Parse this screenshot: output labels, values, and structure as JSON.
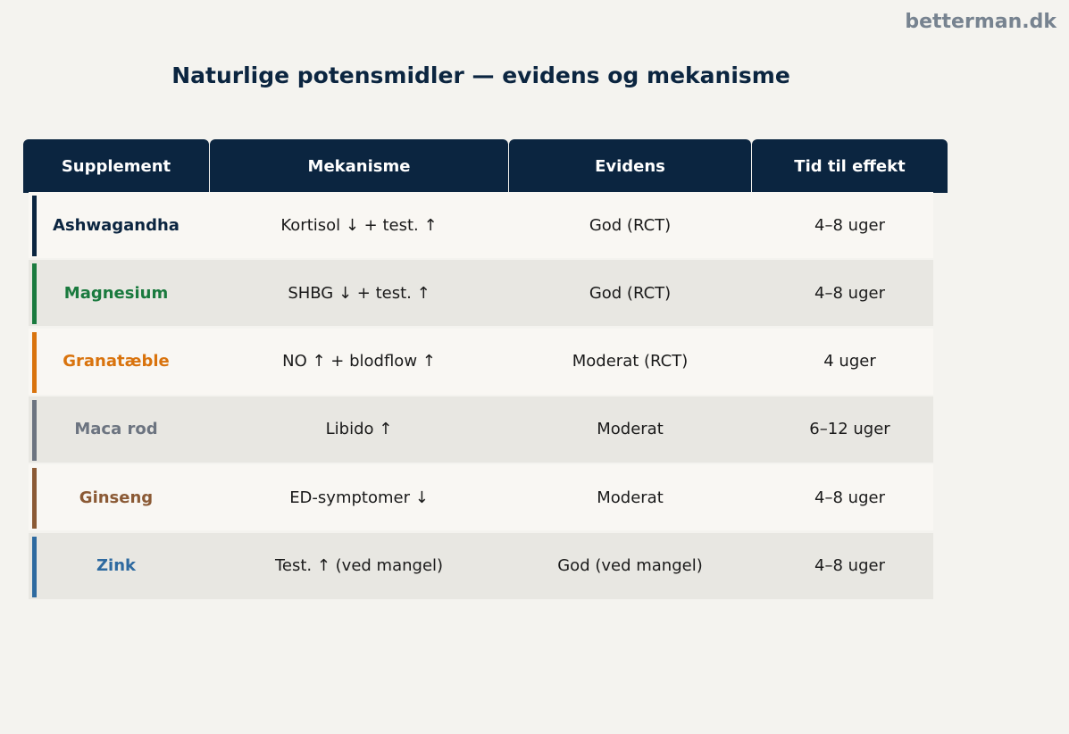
{
  "brand": "betterman.dk",
  "title": "Naturlige potensmidler — evidens og mekanisme",
  "table": {
    "headers": [
      "Supplement",
      "Mekanisme",
      "Evidens",
      "Tid til effekt"
    ],
    "rows": [
      [
        "Ashwagandha",
        "Kortisol ↓ + test. ↑",
        "God (RCT)",
        "4–8 uger"
      ],
      [
        "Magnesium",
        "SHBG ↓ + test. ↑",
        "God (RCT)",
        "4–8 uger"
      ],
      [
        "Granatæble",
        "NO ↑ + blodflow ↑",
        "Moderat (RCT)",
        "4 uger"
      ],
      [
        "Maca rod",
        "Libido ↑",
        "Moderat",
        "6–12 uger"
      ],
      [
        "Ginseng",
        "ED-symptomer ↓",
        "Moderat",
        "4–8 uger"
      ],
      [
        "Zink",
        "Test. ↑ (ved mangel)",
        "God (ved mangel)",
        "4–8 uger"
      ]
    ]
  }
}
